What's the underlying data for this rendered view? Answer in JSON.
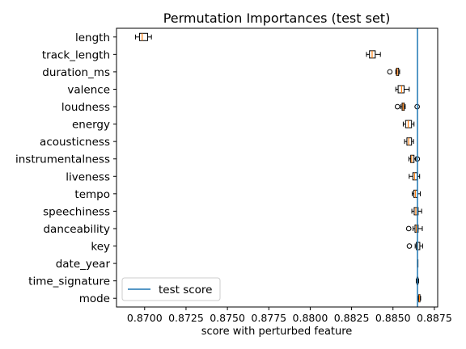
{
  "chart_data": {
    "type": "boxplot",
    "title": "Permutation Importances (test set)",
    "xlabel": "score with perturbed feature",
    "ylabel": "",
    "xlim": [
      0.8683,
      0.8877
    ],
    "xticks": [
      0.87,
      0.8725,
      0.875,
      0.8775,
      0.88,
      0.8825,
      0.885,
      0.8875
    ],
    "xtick_labels": [
      "0.8700",
      "0.8725",
      "0.8750",
      "0.8775",
      "0.8800",
      "0.8825",
      "0.8850",
      "0.8875"
    ],
    "reference_line": {
      "label": "test score",
      "x": 0.88648,
      "color": "#1f77b4"
    },
    "legend": {
      "placement": "lower-left",
      "entries": [
        "test score"
      ]
    },
    "grid": false,
    "box_color": "#000000",
    "median_color": "#ff7f0e",
    "features": [
      {
        "name": "length",
        "whislo": 0.86945,
        "q1": 0.86969,
        "med": 0.86985,
        "q3": 0.87018,
        "whishi": 0.87041,
        "fliers": []
      },
      {
        "name": "track_length",
        "whislo": 0.8834,
        "q1": 0.88358,
        "med": 0.88374,
        "q3": 0.88393,
        "whishi": 0.88424,
        "fliers": []
      },
      {
        "name": "duration_ms",
        "whislo": 0.88517,
        "q1": 0.88521,
        "med": 0.88526,
        "q3": 0.88534,
        "whishi": 0.8854,
        "fliers": [
          0.88481
        ]
      },
      {
        "name": "valence",
        "whislo": 0.88517,
        "q1": 0.88531,
        "med": 0.88552,
        "q3": 0.88567,
        "whishi": 0.88598,
        "fliers": []
      },
      {
        "name": "loudness",
        "whislo": 0.88547,
        "q1": 0.88555,
        "med": 0.88561,
        "q3": 0.88568,
        "whishi": 0.88574,
        "fliers": [
          0.88527,
          0.88646
        ]
      },
      {
        "name": "energy",
        "whislo": 0.88562,
        "q1": 0.88576,
        "med": 0.88592,
        "q3": 0.88612,
        "whishi": 0.88627,
        "fliers": []
      },
      {
        "name": "acousticness",
        "whislo": 0.8857,
        "q1": 0.88584,
        "med": 0.88595,
        "q3": 0.88612,
        "whishi": 0.88624,
        "fliers": []
      },
      {
        "name": "instrumentalness",
        "whislo": 0.88596,
        "q1": 0.88607,
        "med": 0.88613,
        "q3": 0.88627,
        "whishi": 0.88638,
        "fliers": [
          0.88647
        ]
      },
      {
        "name": "liveness",
        "whislo": 0.88598,
        "q1": 0.8862,
        "med": 0.8863,
        "q3": 0.88646,
        "whishi": 0.88661,
        "fliers": []
      },
      {
        "name": "tempo",
        "whislo": 0.88616,
        "q1": 0.88626,
        "med": 0.88635,
        "q3": 0.88648,
        "whishi": 0.88665,
        "fliers": []
      },
      {
        "name": "speechiness",
        "whislo": 0.88614,
        "q1": 0.88628,
        "med": 0.88638,
        "q3": 0.88652,
        "whishi": 0.88673,
        "fliers": []
      },
      {
        "name": "danceability",
        "whislo": 0.88621,
        "q1": 0.88633,
        "med": 0.88641,
        "q3": 0.88652,
        "whishi": 0.88677,
        "fliers": [
          0.88595
        ]
      },
      {
        "name": "key",
        "whislo": 0.88634,
        "q1": 0.88641,
        "med": 0.8865,
        "q3": 0.88662,
        "whishi": 0.88679,
        "fliers": [
          0.88599
        ]
      },
      {
        "name": "date_year",
        "whislo": 0.88648,
        "q1": 0.88648,
        "med": 0.88648,
        "q3": 0.88648,
        "whishi": 0.88648,
        "fliers": []
      },
      {
        "name": "time_signature",
        "whislo": 0.88641,
        "q1": 0.88645,
        "med": 0.88648,
        "q3": 0.88651,
        "whishi": 0.88655,
        "fliers": []
      },
      {
        "name": "mode",
        "whislo": 0.88652,
        "q1": 0.88656,
        "med": 0.8866,
        "q3": 0.88663,
        "whishi": 0.88667,
        "fliers": []
      }
    ]
  }
}
